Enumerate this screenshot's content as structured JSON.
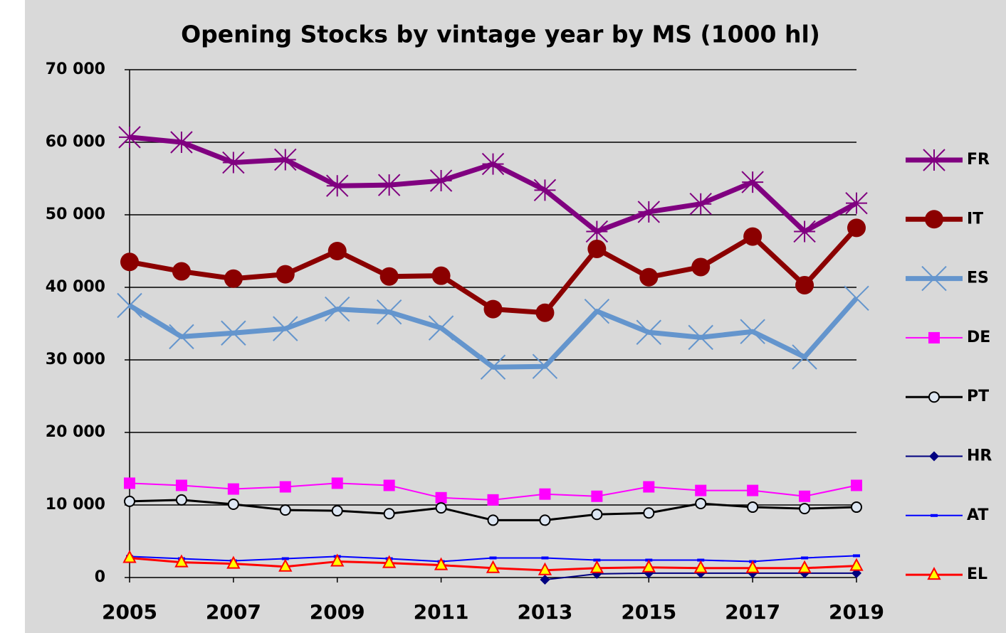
{
  "chart_data": {
    "type": "line",
    "title": "Opening Stocks by vintage year  by MS   (1000 hl)",
    "x": [
      2005,
      2006,
      2007,
      2008,
      2009,
      2010,
      2011,
      2012,
      2013,
      2014,
      2015,
      2016,
      2017,
      2018,
      2019
    ],
    "xlim": [
      2005,
      2019
    ],
    "xticks": [
      2005,
      2007,
      2009,
      2011,
      2013,
      2015,
      2017,
      2019
    ],
    "ylim": [
      0,
      70000
    ],
    "yticks": [
      0,
      {
        "value": 10000,
        "label": "10 000"
      },
      {
        "value": 20000,
        "label": "20 000"
      },
      {
        "value": 30000,
        "label": "30 000"
      },
      {
        "value": 40000,
        "label": "40 000"
      },
      {
        "value": 50000,
        "label": "50 000"
      },
      {
        "value": 60000,
        "label": "60 000"
      },
      {
        "value": 70000,
        "label": "70 000"
      }
    ],
    "grid": true,
    "legend": "right",
    "series": [
      {
        "name": "FR",
        "color": "#800080",
        "line_width": 7,
        "marker": "star",
        "values": [
          60700,
          60000,
          57200,
          57600,
          54000,
          54100,
          54700,
          57000,
          53400,
          47700,
          50400,
          51500,
          54500,
          47700,
          51600
        ]
      },
      {
        "name": "IT",
        "color": "#8b0000",
        "line_width": 7,
        "marker": "circle",
        "values": [
          43500,
          42200,
          41200,
          41800,
          45000,
          41500,
          41600,
          37000,
          36500,
          45300,
          41400,
          42800,
          47000,
          40300,
          48200
        ]
      },
      {
        "name": "ES",
        "color": "#6495cd",
        "line_width": 7,
        "marker": "x",
        "values": [
          37500,
          33200,
          33700,
          34300,
          37000,
          36600,
          34400,
          29000,
          29100,
          36700,
          33800,
          33100,
          33900,
          30400,
          38500
        ]
      },
      {
        "name": "DE",
        "color": "#ff00ff",
        "line_width": 2,
        "marker": "square",
        "values": [
          13000,
          12700,
          12200,
          12500,
          13000,
          12700,
          11000,
          10700,
          11500,
          11200,
          12500,
          12000,
          12000,
          11200,
          12700
        ]
      },
      {
        "name": "PT",
        "color": "#000000",
        "line_width": 3,
        "marker": "ring",
        "values": [
          10500,
          10700,
          10100,
          9300,
          9200,
          8800,
          9600,
          7900,
          7900,
          8700,
          8900,
          10200,
          9700,
          9500,
          9700
        ]
      },
      {
        "name": "HR",
        "color": "#000080",
        "line_width": 2,
        "marker": "diamond",
        "values": [
          null,
          null,
          null,
          null,
          null,
          null,
          null,
          null,
          -300,
          500,
          600,
          600,
          600,
          600,
          600
        ]
      },
      {
        "name": "AT",
        "color": "#0000ff",
        "line_width": 2,
        "marker": "dash",
        "values": [
          2900,
          2600,
          2300,
          2600,
          2900,
          2600,
          2200,
          2700,
          2700,
          2400,
          2400,
          2400,
          2200,
          2700,
          3000
        ]
      },
      {
        "name": "EL",
        "color": "#ff0000",
        "line_width": 3,
        "marker": "triangle",
        "values": [
          2700,
          2100,
          1900,
          1500,
          2200,
          2000,
          1700,
          1300,
          1000,
          1300,
          1400,
          1300,
          1300,
          1300,
          1600
        ]
      }
    ]
  }
}
